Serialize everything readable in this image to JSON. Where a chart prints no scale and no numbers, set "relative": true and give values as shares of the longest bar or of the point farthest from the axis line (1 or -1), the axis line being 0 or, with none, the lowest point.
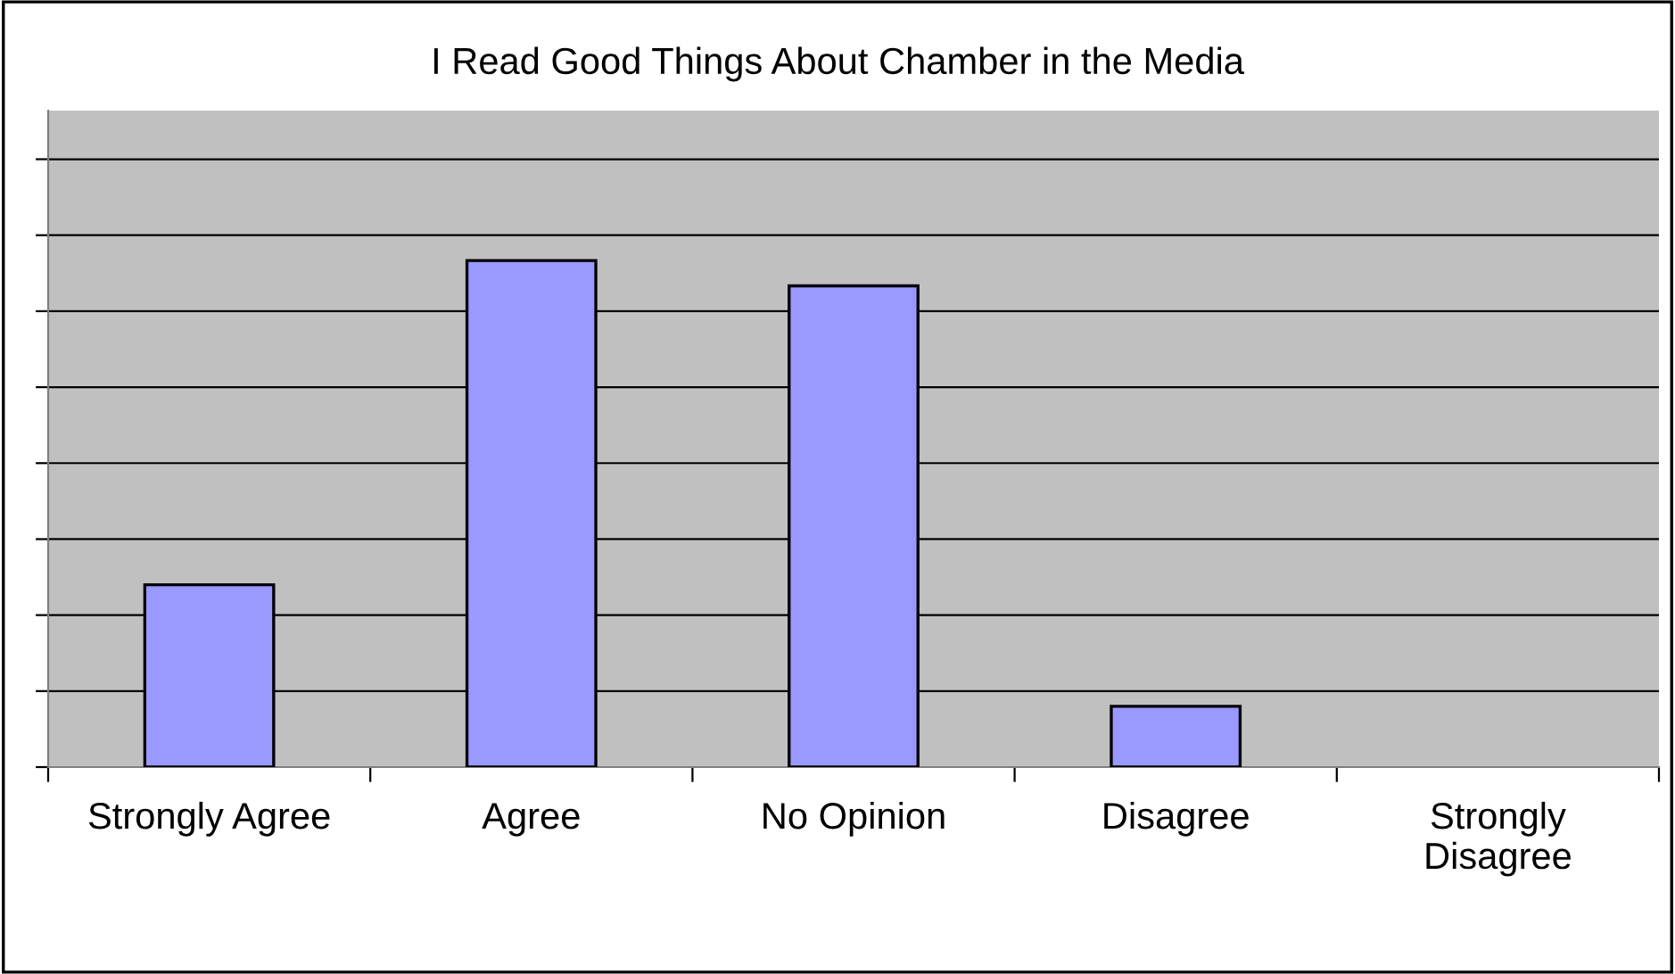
{
  "chart_data": {
    "type": "bar",
    "title": "I Read Good Things About Chamber in the Media",
    "categories": [
      "Strongly Agree",
      "Agree",
      "No Opinion",
      "Disagree",
      "Strongly\nDisagree"
    ],
    "values": [
      0.36,
      1,
      0.95,
      0.12,
      0
    ],
    "color": "#9999ff",
    "relative": true,
    "grid": "y"
  }
}
